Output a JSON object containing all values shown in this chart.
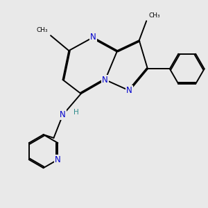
{
  "bg_color": "#e9e9e9",
  "bond_color": "#000000",
  "N_color": "#0000cc",
  "H_color": "#2e8b8b",
  "font_size_atom": 8.5,
  "line_width": 1.4,
  "dbo": 0.018,
  "xlim": [
    -0.2,
    3.2
  ],
  "ylim": [
    -0.1,
    3.1
  ],
  "figsize": [
    3.0,
    3.0
  ],
  "dpi": 100
}
